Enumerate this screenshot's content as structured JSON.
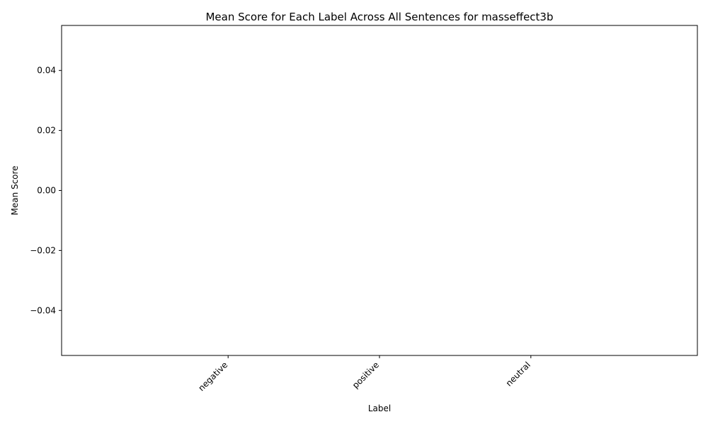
{
  "chart_data": {
    "type": "bar",
    "title": "Mean Score for Each Label Across All Sentences for masseffect3b",
    "xlabel": "Label",
    "ylabel": "Mean Score",
    "categories": [
      "negative",
      "positive",
      "neutral"
    ],
    "values": [
      0,
      0,
      0
    ],
    "ylim": [
      -0.055,
      0.055
    ],
    "yticks": [
      0.04,
      0.02,
      0.0,
      -0.02,
      -0.04
    ],
    "ytick_labels": [
      "0.04",
      "0.02",
      "0.00",
      "−0.02",
      "−0.04"
    ],
    "grid": false,
    "xtick_rotation": 45
  }
}
